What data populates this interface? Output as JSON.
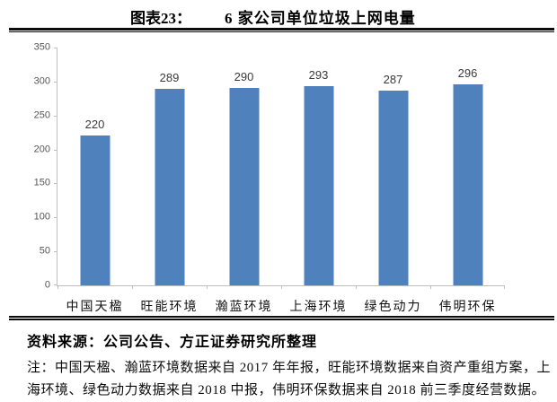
{
  "header": {
    "figure_label": "图表23：",
    "title": "6 家公司单位垃圾上网电量"
  },
  "chart_data": {
    "type": "bar",
    "title": "6 家公司单位垃圾上网电量",
    "categories": [
      "中国天楹",
      "旺能环境",
      "瀚蓝环境",
      "上海环境",
      "绿色动力",
      "伟明环保"
    ],
    "values": [
      220,
      289,
      290,
      293,
      287,
      296
    ],
    "xlabel": "",
    "ylabel": "",
    "ylim": [
      0,
      350
    ],
    "yticks": [
      0,
      50,
      100,
      150,
      200,
      250,
      300,
      350
    ],
    "grid": false,
    "legend": "none",
    "data_labels": true,
    "bar_color": "#4f81bd",
    "axis_color": "#bfbfbf",
    "tick_label_color": "#555555",
    "value_label_color": "#3a3a3a"
  },
  "footer": {
    "source": "资料来源：公司公告、方正证券研究所整理",
    "note_lines": [
      "注：中国天楹、瀚蓝环境数据来自 2017 年年报，旺能环境数据来自资产重组方案，上",
      "海环境、绿色动力数据来自 2018 中报，伟明环保数据来自 2018 前三季度经营数据。"
    ]
  }
}
